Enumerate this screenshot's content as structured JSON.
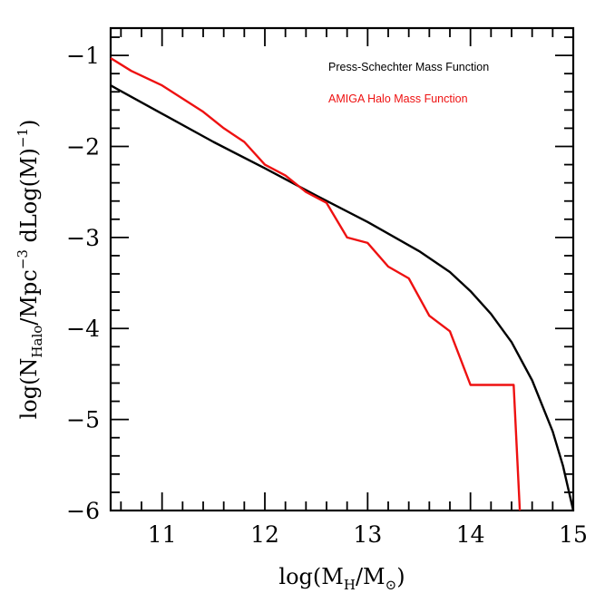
{
  "chart_data": {
    "type": "line",
    "xlabel": "log(M_H/M_⊙)",
    "ylabel": "log(N_Halo/Mpc^-3 dLog(M)^-1)",
    "xlim": [
      10.5,
      15
    ],
    "ylim": [
      -6,
      -0.7
    ],
    "x_ticks": [
      11,
      12,
      13,
      14,
      15
    ],
    "x_tick_labels": [
      "11",
      "12",
      "13",
      "14",
      "15"
    ],
    "y_ticks": [
      -1,
      -2,
      -3,
      -4,
      -5,
      -6
    ],
    "y_tick_labels": [
      "−1",
      "−2",
      "−3",
      "−4",
      "−5",
      "−6"
    ],
    "grid": false,
    "legend_position": "top-right",
    "series": [
      {
        "name": "Press-Schechter Mass Function",
        "color": "#000000",
        "x": [
          10.5,
          11.0,
          11.5,
          12.0,
          12.5,
          13.0,
          13.5,
          13.8,
          14.0,
          14.2,
          14.4,
          14.6,
          14.8,
          14.9,
          15.0
        ],
        "y": [
          -1.33,
          -1.64,
          -1.95,
          -2.24,
          -2.54,
          -2.83,
          -3.15,
          -3.38,
          -3.59,
          -3.84,
          -4.15,
          -4.57,
          -5.13,
          -5.51,
          -6.0
        ]
      },
      {
        "name": "AMIGA Halo Mass Function",
        "color": "#ee1111",
        "x": [
          10.5,
          10.7,
          11.0,
          11.4,
          11.6,
          11.8,
          12.0,
          12.2,
          12.4,
          12.6,
          12.8,
          13.0,
          13.2,
          13.4,
          13.6,
          13.8,
          14.0,
          14.2,
          14.42,
          14.48
        ],
        "y": [
          -1.03,
          -1.17,
          -1.33,
          -1.62,
          -1.8,
          -1.95,
          -2.2,
          -2.32,
          -2.5,
          -2.62,
          -3.0,
          -3.06,
          -3.32,
          -3.45,
          -3.86,
          -4.03,
          -4.62,
          -4.62,
          -4.62,
          -6.0
        ]
      }
    ]
  }
}
